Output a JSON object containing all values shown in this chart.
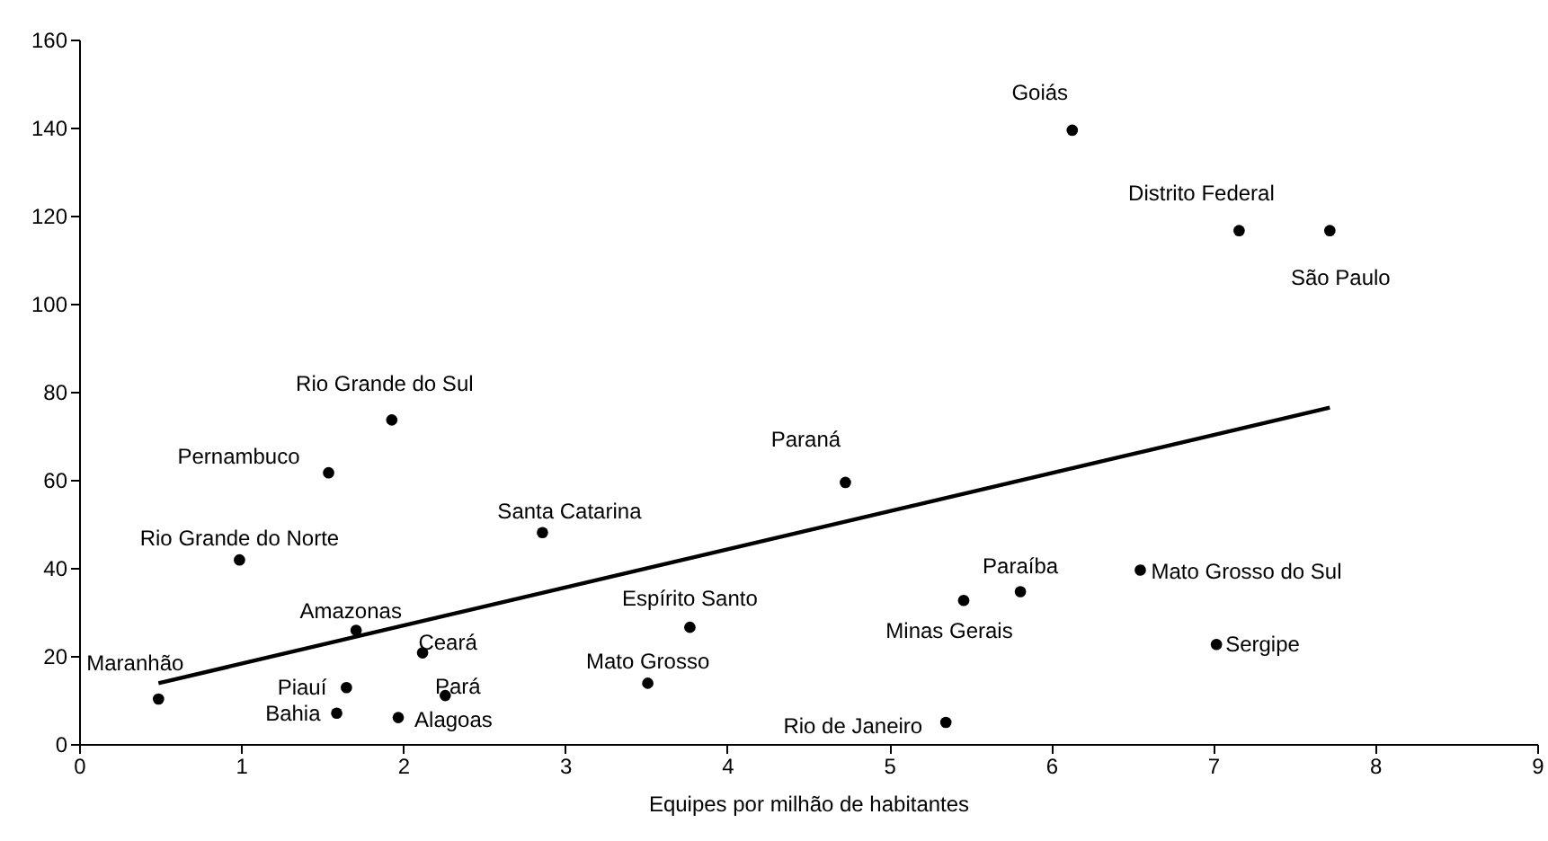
{
  "chart_data": {
    "type": "scatter",
    "xlabel": "Equipes por milhão de habitantes",
    "xlim": [
      0,
      9
    ],
    "xticks": [
      0,
      1,
      2,
      3,
      4,
      5,
      6,
      7,
      8,
      9
    ],
    "ylim": [
      0,
      160
    ],
    "yticks": [
      0,
      20,
      40,
      60,
      80,
      100,
      120,
      140,
      160
    ],
    "grid": false,
    "series": [
      {
        "marker": "circle",
        "color": "#000000",
        "x": [
          6.13,
          7.16,
          7.72,
          1.93,
          1.54,
          4.73,
          2.86,
          0.99,
          1.71,
          2.12,
          1.65,
          2.26,
          1.59,
          1.97,
          0.49,
          3.77,
          3.51,
          5.46,
          5.81,
          5.35,
          6.55,
          7.02
        ],
        "values": [
          139.4,
          116.6,
          116.6,
          73.6,
          61.6,
          59.4,
          48,
          41.8,
          25.8,
          20.7,
          12.8,
          11,
          7,
          6,
          10.2,
          26.5,
          13.8,
          32.6,
          34.6,
          4.9,
          39.5,
          22.6
        ],
        "value_labels": [
          "Goiás",
          "Distrito Federal",
          "São Paulo",
          "Rio Grande do Sul",
          "Pernambuco",
          "Paraná",
          "Santa Catarina",
          "Rio Grande do Norte",
          "Amazonas",
          "Ceará",
          "Piauí",
          "Pará",
          "Bahia",
          "Alagoas",
          "Maranhão",
          "Espírito Santo",
          "Mato Grosso",
          "Minas Gerais",
          "Paraíba",
          "Rio de Janeiro",
          "Mato Grosso do Sul",
          "Sergipe"
        ]
      },
      {
        "type": "line",
        "color": "#000000",
        "x": [
          0.49,
          7.72
        ],
        "values": [
          13.8,
          76.4
        ]
      }
    ]
  }
}
